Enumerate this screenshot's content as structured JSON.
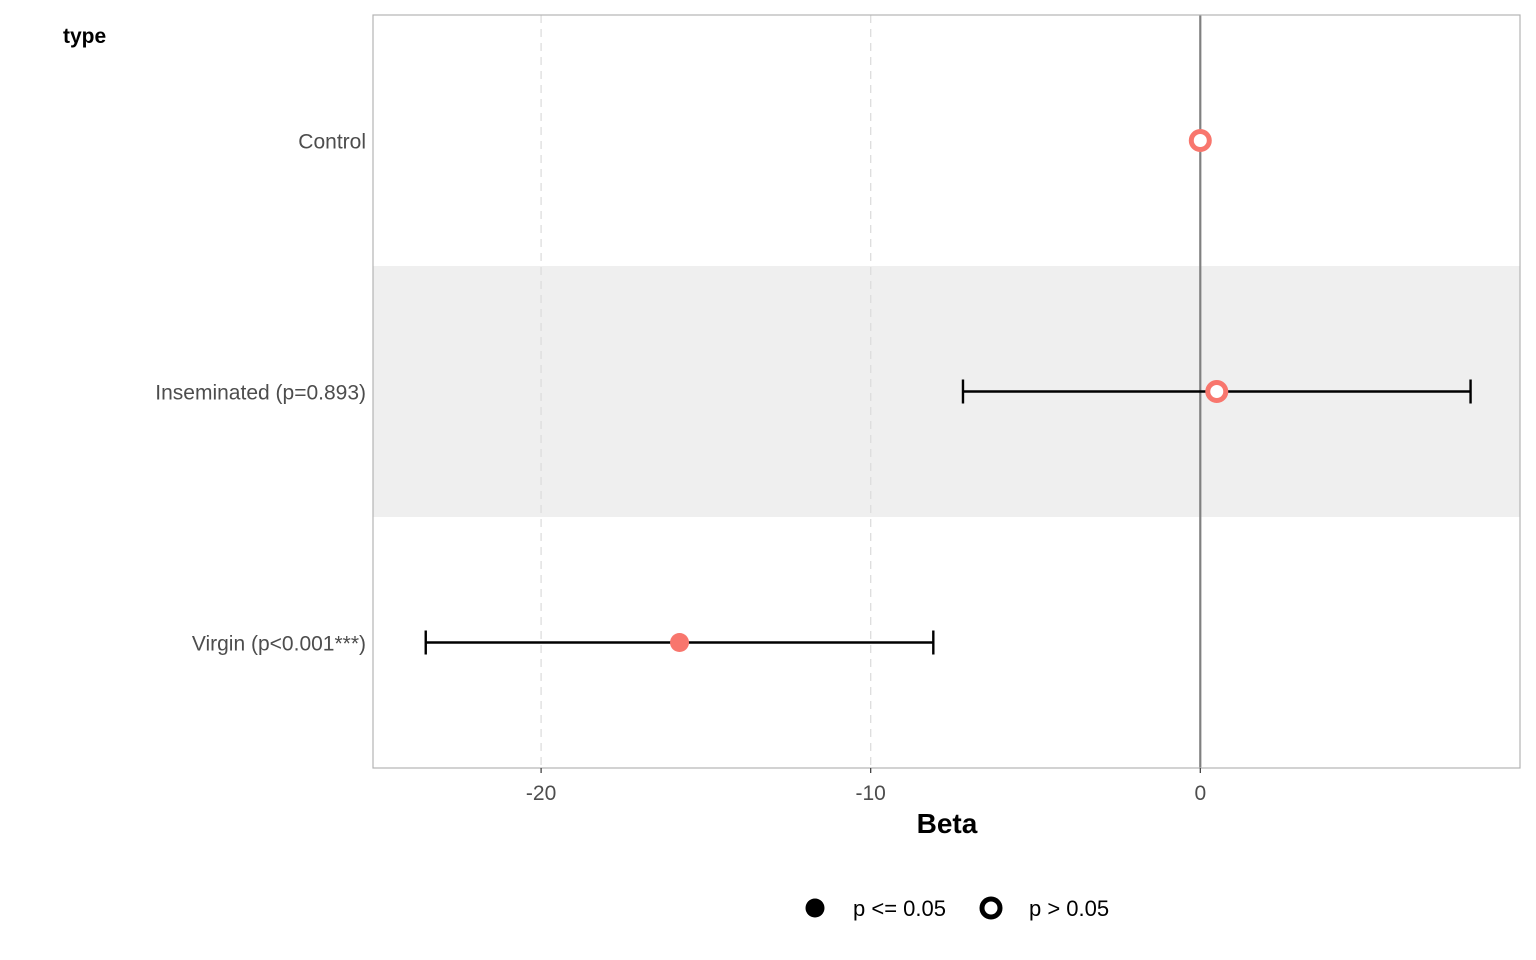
{
  "chart_data": {
    "type": "forest",
    "group_label": "type",
    "xlabel": "Beta",
    "xlim": [
      -25.1,
      9.7
    ],
    "x_ticks": [
      -20,
      -10,
      0
    ],
    "x_tick_labels": [
      "-20",
      "-10",
      "0"
    ],
    "reference_line": 0,
    "grid": "vertical dashed",
    "legend_position": "bottom",
    "point_color": "#F8766D",
    "rows": [
      {
        "label": "Control",
        "estimate": 0,
        "ci_low": null,
        "ci_high": null,
        "significant": false
      },
      {
        "label": "Inseminated (p=0.893)",
        "estimate": 0.5,
        "ci_low": -7.2,
        "ci_high": 8.2,
        "significant": false
      },
      {
        "label": "Virgin (p<0.001***)",
        "estimate": -15.8,
        "ci_low": -23.5,
        "ci_high": -8.1,
        "significant": true
      }
    ],
    "legend": [
      {
        "label": "p <= 0.05",
        "style": "filled"
      },
      {
        "label": "p > 0.05",
        "style": "hollow"
      }
    ]
  }
}
